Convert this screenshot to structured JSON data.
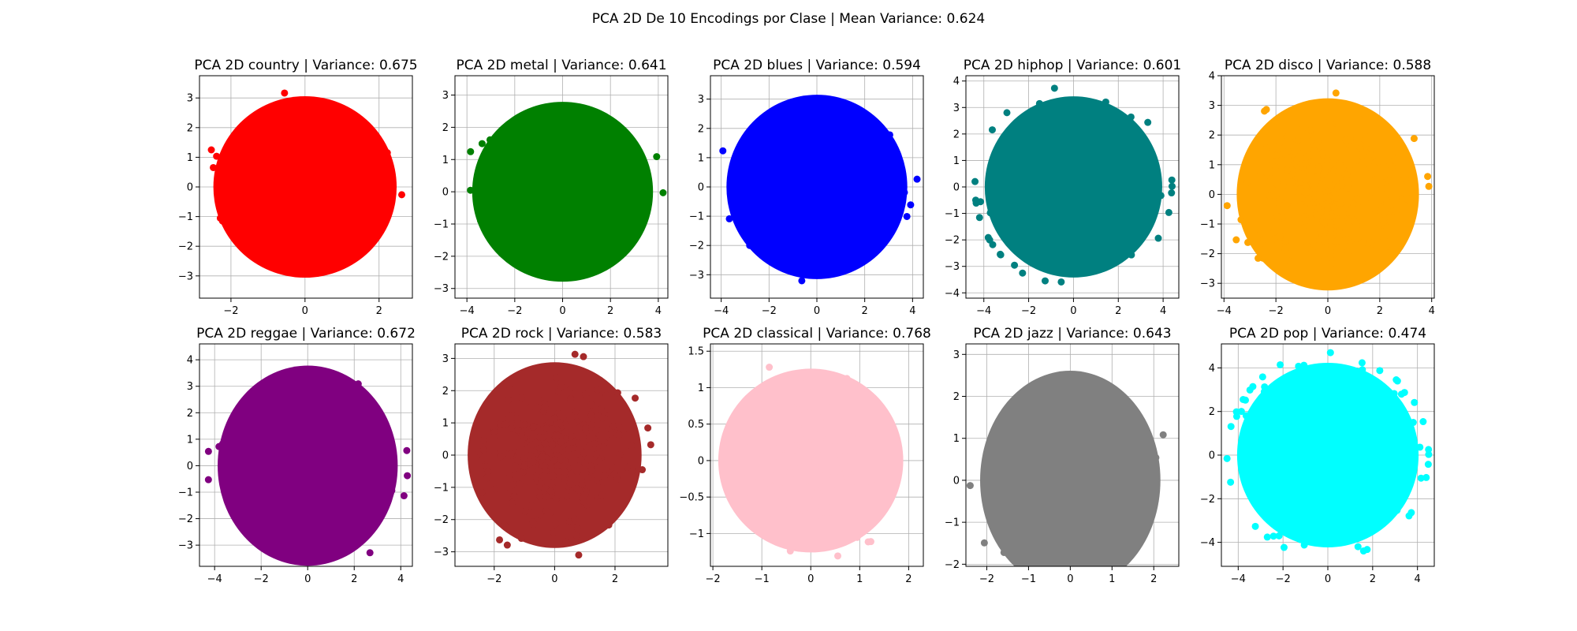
{
  "figure": {
    "suptitle": "PCA 2D De 10 Encodings por Clase | Mean Variance: 0.624"
  },
  "chart_data": [
    {
      "type": "scatter",
      "title": "PCA 2D country | Variance: 0.675",
      "class": "country",
      "variance": 0.675,
      "color": "#ff0000",
      "xlim": [
        -2.85,
        2.9
      ],
      "ylim": [
        -3.75,
        3.75
      ],
      "xticks": [
        -2,
        0,
        2
      ],
      "yticks": [
        -3,
        -2,
        -1,
        0,
        1,
        2,
        3
      ],
      "grid": true,
      "cloud": {
        "cx": 0.0,
        "cy": 0.0,
        "rx": 2.75,
        "ry": 3.4,
        "sx": 1.0,
        "sy": 1.05
      }
    },
    {
      "type": "scatter",
      "title": "PCA 2D metal | Variance: 0.641",
      "class": "metal",
      "variance": 0.641,
      "color": "#008000",
      "xlim": [
        -4.5,
        4.4
      ],
      "ylim": [
        -3.3,
        3.6
      ],
      "xticks": [
        -4,
        -2,
        0,
        2,
        4
      ],
      "yticks": [
        -3,
        -2,
        -1,
        0,
        1,
        2,
        3
      ],
      "grid": true,
      "cloud": {
        "cx": 0.0,
        "cy": 0.0,
        "rx": 4.2,
        "ry": 3.1,
        "sx": 1.45,
        "sy": 0.95
      }
    },
    {
      "type": "scatter",
      "title": "PCA 2D blues | Variance: 0.594",
      "class": "blues",
      "variance": 0.594,
      "color": "#0000ff",
      "xlim": [
        -4.45,
        4.45
      ],
      "ylim": [
        -3.8,
        3.8
      ],
      "xticks": [
        -4,
        -2,
        0,
        2,
        4
      ],
      "yticks": [
        -3,
        -2,
        -1,
        0,
        1,
        2,
        3
      ],
      "grid": true,
      "cloud": {
        "cx": 0.0,
        "cy": 0.0,
        "rx": 4.2,
        "ry": 3.5,
        "sx": 1.45,
        "sy": 1.15
      }
    },
    {
      "type": "scatter",
      "title": "PCA 2D hiphop | Variance: 0.601",
      "class": "hiphop",
      "variance": 0.601,
      "color": "#008080",
      "xlim": [
        -4.8,
        4.7
      ],
      "ylim": [
        -4.2,
        4.2
      ],
      "xticks": [
        -4,
        -2,
        0,
        2,
        4
      ],
      "yticks": [
        -4,
        -3,
        -2,
        -1,
        0,
        1,
        2,
        3,
        4
      ],
      "grid": true,
      "cloud": {
        "cx": 0.0,
        "cy": 0.0,
        "rx": 4.4,
        "ry": 3.8,
        "sx": 2.0,
        "sy": 1.4
      }
    },
    {
      "type": "scatter",
      "title": "PCA 2D disco | Variance: 0.588",
      "class": "disco",
      "variance": 0.588,
      "color": "#ffa500",
      "xlim": [
        -4.1,
        4.1
      ],
      "ylim": [
        -3.5,
        4.0
      ],
      "xticks": [
        -4,
        -2,
        0,
        2,
        4
      ],
      "yticks": [
        -3,
        -2,
        -1,
        0,
        1,
        2,
        3,
        4
      ],
      "grid": true,
      "cloud": {
        "cx": 0.0,
        "cy": 0.0,
        "rx": 3.9,
        "ry": 3.6,
        "sx": 1.5,
        "sy": 1.2
      }
    },
    {
      "type": "scatter",
      "title": "PCA 2D reggae | Variance: 0.672",
      "class": "reggae",
      "variance": 0.672,
      "color": "#800080",
      "xlim": [
        -4.65,
        4.5
      ],
      "ylim": [
        -3.8,
        4.6
      ],
      "xticks": [
        -4,
        -2,
        0,
        2,
        4
      ],
      "yticks": [
        -3,
        -2,
        -1,
        0,
        1,
        2,
        3,
        4
      ],
      "grid": true,
      "cloud": {
        "cx": 0.0,
        "cy": 0.0,
        "rx": 4.3,
        "ry": 4.2,
        "sx": 1.55,
        "sy": 1.2
      }
    },
    {
      "type": "scatter",
      "title": "PCA 2D rock | Variance: 0.583",
      "class": "rock",
      "variance": 0.583,
      "color": "#a52a2a",
      "xlim": [
        -3.3,
        3.75
      ],
      "ylim": [
        -3.45,
        3.45
      ],
      "xticks": [
        -2,
        0,
        2
      ],
      "yticks": [
        -3,
        -2,
        -1,
        0,
        1,
        2,
        3
      ],
      "grid": true,
      "cloud": {
        "cx": 0.0,
        "cy": 0.0,
        "rx": 3.2,
        "ry": 3.2,
        "sx": 1.15,
        "sy": 1.1
      }
    },
    {
      "type": "scatter",
      "title": "PCA 2D classical | Variance: 0.768",
      "class": "classical",
      "variance": 0.768,
      "color": "#ffc0cb",
      "xlim": [
        -2.05,
        2.3
      ],
      "ylim": [
        -1.45,
        1.6
      ],
      "xticks": [
        -2,
        -1,
        0,
        1,
        2
      ],
      "yticks": [
        -1.0,
        -0.5,
        0.0,
        0.5,
        1.0,
        1.5
      ],
      "grid": true,
      "cloud": {
        "cx": 0.0,
        "cy": 0.0,
        "rx": 2.1,
        "ry": 1.4,
        "sx": 0.6,
        "sy": 0.5
      }
    },
    {
      "type": "scatter",
      "title": "PCA 2D jazz | Variance: 0.643",
      "class": "jazz",
      "variance": 0.643,
      "color": "#808080",
      "xlim": [
        -2.5,
        2.6
      ],
      "ylim": [
        -2.05,
        3.25
      ],
      "xticks": [
        -2,
        -1,
        0,
        1,
        2
      ],
      "yticks": [
        -2,
        -1,
        0,
        1,
        2,
        3
      ],
      "grid": true,
      "cloud": {
        "cx": 0.0,
        "cy": 0.0,
        "rx": 2.4,
        "ry": 2.9,
        "sx": 0.8,
        "sy": 0.75
      }
    },
    {
      "type": "scatter",
      "title": "PCA 2D pop | Variance: 0.474",
      "class": "pop",
      "variance": 0.474,
      "color": "#00ffff",
      "xlim": [
        -4.75,
        4.75
      ],
      "ylim": [
        -5.1,
        5.1
      ],
      "xticks": [
        -4,
        -2,
        0,
        2,
        4
      ],
      "yticks": [
        -4,
        -2,
        0,
        2,
        4
      ],
      "grid": true,
      "cloud": {
        "cx": 0.0,
        "cy": 0.0,
        "rx": 4.5,
        "ry": 4.7,
        "sx": 2.2,
        "sy": 2.1
      }
    }
  ]
}
